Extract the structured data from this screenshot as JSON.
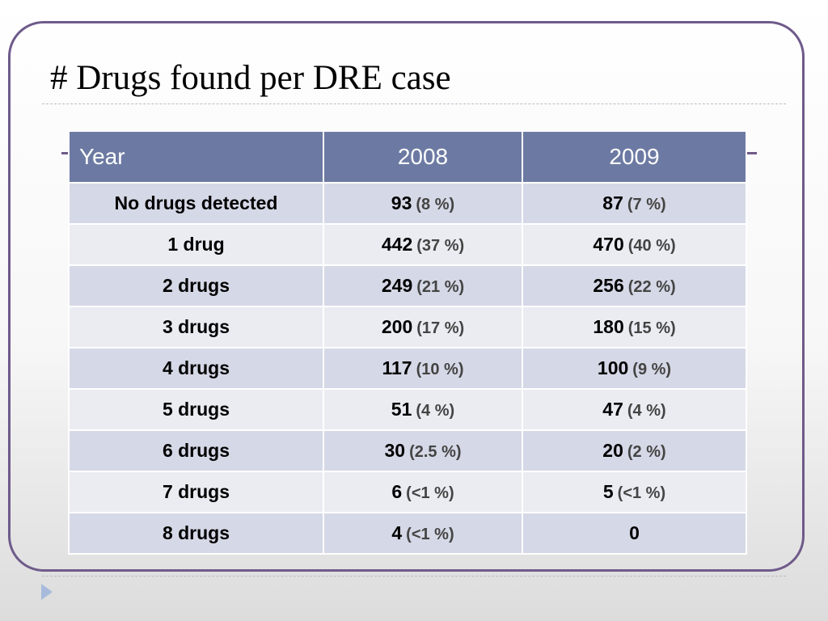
{
  "slide": {
    "title": "# Drugs found per DRE case"
  },
  "table": {
    "headers": [
      "Year",
      "2008",
      "2009"
    ],
    "rows": [
      {
        "label": "No drugs detected",
        "v2008": "93",
        "p2008": "(8 %)",
        "v2009": "87",
        "p2009": "(7 %)"
      },
      {
        "label": "1 drug",
        "v2008": "442",
        "p2008": "(37 %)",
        "v2009": "470",
        "p2009": "(40 %)"
      },
      {
        "label": "2 drugs",
        "v2008": "249",
        "p2008": "(21 %)",
        "v2009": "256",
        "p2009": "(22 %)"
      },
      {
        "label": "3 drugs",
        "v2008": "200",
        "p2008": "(17 %)",
        "v2009": "180",
        "p2009": "(15 %)"
      },
      {
        "label": "4 drugs",
        "v2008": "117",
        "p2008": "(10 %)",
        "v2009": "100",
        "p2009": "(9 %)"
      },
      {
        "label": "5 drugs",
        "v2008": "51",
        "p2008": "(4 %)",
        "v2009": "47",
        "p2009": "(4 %)"
      },
      {
        "label": "6 drugs",
        "v2008": "30",
        "p2008": "(2.5 %)",
        "v2009": "20",
        "p2009": "(2 %)"
      },
      {
        "label": "7 drugs",
        "v2008": "6",
        "p2008": "(<1 %)",
        "v2009": "5",
        "p2009": "(<1 %)"
      },
      {
        "label": "8 drugs",
        "v2008": "4",
        "p2008": "(<1 %)",
        "v2009": "0",
        "p2009": ""
      }
    ]
  },
  "colors": {
    "frame": "#6e5a8a",
    "header_bg": "#6c7aa3",
    "row_dark": "#d5d8e6",
    "row_light": "#ebecf2",
    "nav_arrow": "#a8bbdc"
  },
  "icons": {
    "next_slide": "triangle-right-icon"
  }
}
